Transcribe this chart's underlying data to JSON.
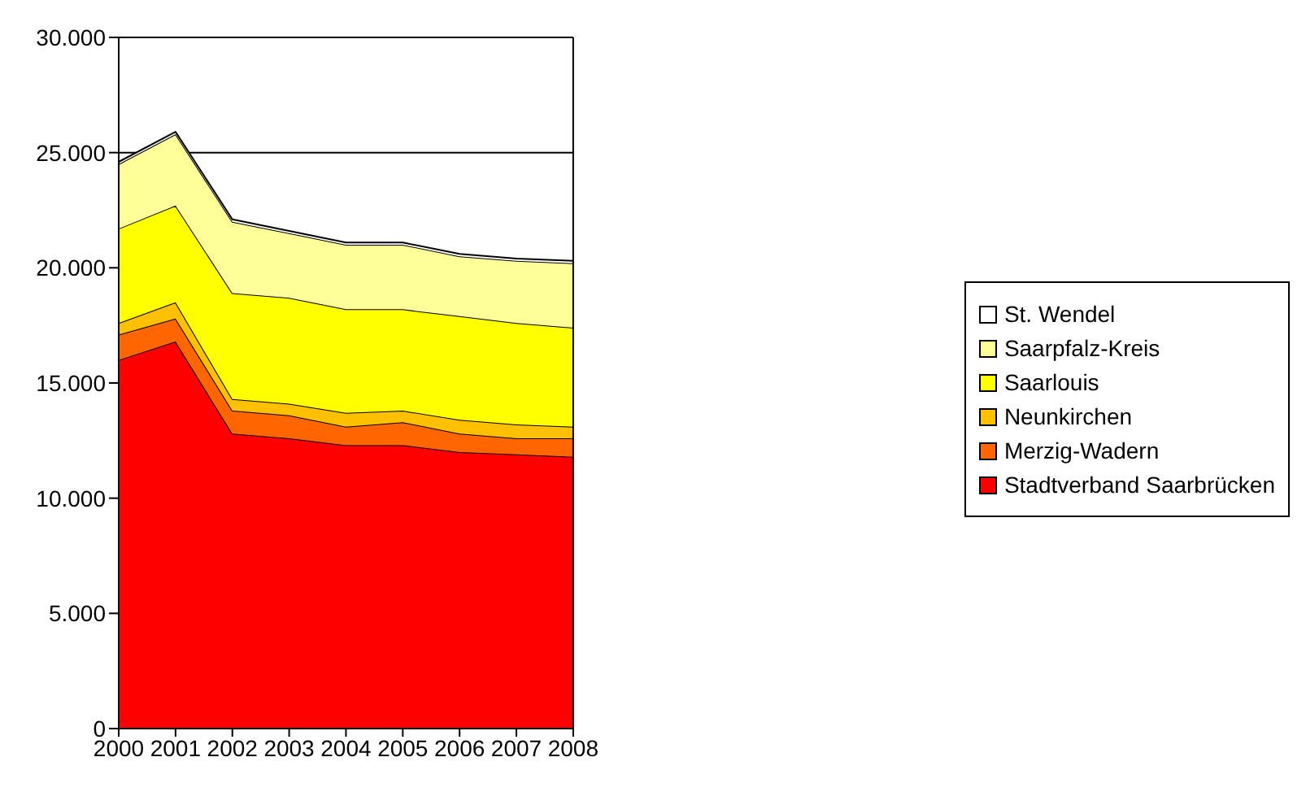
{
  "chart_data": {
    "type": "area",
    "stacked": true,
    "x": [
      2000,
      2001,
      2002,
      2003,
      2004,
      2005,
      2006,
      2007,
      2008
    ],
    "xlim": [
      2000,
      2008
    ],
    "xticks": [
      2000,
      2001,
      2002,
      2003,
      2004,
      2005,
      2006,
      2007,
      2008
    ],
    "ylim": [
      0,
      30000
    ],
    "yticks": [
      {
        "value": 0,
        "label": "0"
      },
      {
        "value": 5000,
        "label": "5.000"
      },
      {
        "value": 10000,
        "label": "10.000"
      },
      {
        "value": 15000,
        "label": "15.000"
      },
      {
        "value": 20000,
        "label": "20.000"
      },
      {
        "value": 25000,
        "label": "25.000"
      },
      {
        "value": 30000,
        "label": "30.000"
      }
    ],
    "grid": "y",
    "legend": "right",
    "series": [
      {
        "name": "Stadtverband Saarbrücken",
        "color": "#ff0000",
        "values": [
          16000,
          16800,
          12800,
          12600,
          12300,
          12300,
          12000,
          11900,
          11800
        ]
      },
      {
        "name": "Merzig-Wadern",
        "color": "#ff6600",
        "values": [
          1100,
          1000,
          1000,
          1000,
          800,
          1000,
          800,
          700,
          800
        ]
      },
      {
        "name": "Neunkirchen",
        "color": "#ffc000",
        "values": [
          500,
          700,
          500,
          500,
          600,
          500,
          600,
          600,
          500
        ]
      },
      {
        "name": "Saarlouis",
        "color": "#ffff00",
        "values": [
          4100,
          4200,
          4600,
          4600,
          4500,
          4400,
          4500,
          4400,
          4300
        ]
      },
      {
        "name": "Saarpfalz-Kreis",
        "color": "#ffff99",
        "values": [
          2800,
          3100,
          3100,
          2800,
          2800,
          2800,
          2600,
          2700,
          2800
        ]
      },
      {
        "name": "St. Wendel",
        "color": "#ffffff",
        "values": [
          100,
          100,
          100,
          100,
          100,
          100,
          100,
          100,
          100
        ]
      }
    ]
  }
}
